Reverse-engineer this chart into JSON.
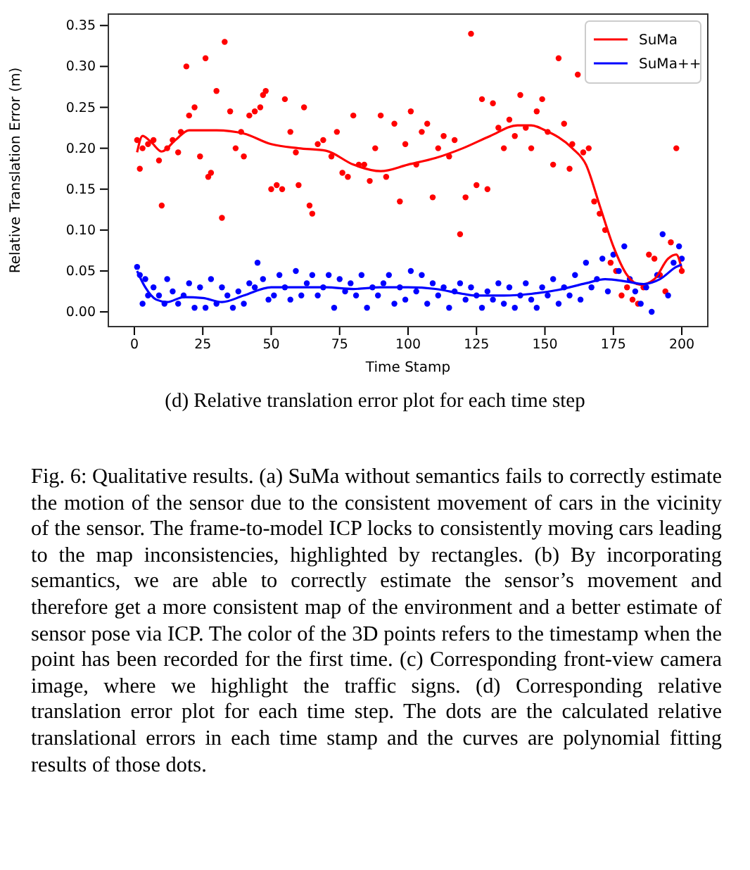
{
  "chart_data": {
    "type": "scatter",
    "title": "(d) Relative translation error plot for each time step",
    "xlabel": "Time Stamp",
    "ylabel": "Relative Translation Error (m)",
    "xlim": [
      -9.5,
      209.5
    ],
    "ylim": [
      -0.018,
      0.364
    ],
    "xticks": [
      0,
      25,
      50,
      75,
      100,
      125,
      150,
      175,
      200
    ],
    "yticks": [
      {
        "value": 0,
        "label": "0.00"
      },
      {
        "value": 0.05,
        "label": "0.05"
      },
      {
        "value": 0.1,
        "label": "0.10"
      },
      {
        "value": 0.15,
        "label": "0.15"
      },
      {
        "value": 0.2,
        "label": "0.20"
      },
      {
        "value": 0.25,
        "label": "0.25"
      },
      {
        "value": 0.3,
        "label": "0.30"
      },
      {
        "value": 0.35,
        "label": "0.35"
      }
    ],
    "grid": false,
    "legend": "top right",
    "series": [
      {
        "marker": "circle",
        "color": "#ff0000",
        "x": [
          1,
          2,
          3,
          5,
          7,
          9,
          10,
          12,
          14,
          16,
          17,
          19,
          20,
          22,
          24,
          26,
          27,
          28,
          30,
          32,
          33,
          35,
          37,
          39,
          40,
          42,
          44,
          46,
          47,
          48,
          50,
          52,
          54,
          55,
          57,
          59,
          60,
          62,
          64,
          65,
          67,
          69,
          72,
          74,
          76,
          78,
          80,
          82,
          84,
          86,
          88,
          90,
          92,
          95,
          97,
          99,
          101,
          103,
          105,
          107,
          109,
          111,
          113,
          115,
          117,
          119,
          121,
          123,
          125,
          127,
          129,
          131,
          133,
          135,
          137,
          139,
          141,
          143,
          145,
          147,
          149,
          151,
          153,
          155,
          157,
          159,
          160,
          162,
          164,
          166,
          168,
          170,
          172,
          174,
          176,
          178,
          180,
          182,
          184,
          186,
          188,
          190,
          192,
          194,
          196,
          198,
          200
        ],
        "values": [
          0.21,
          0.175,
          0.2,
          0.205,
          0.21,
          0.185,
          0.13,
          0.2,
          0.21,
          0.195,
          0.22,
          0.3,
          0.24,
          0.25,
          0.19,
          0.31,
          0.165,
          0.17,
          0.27,
          0.115,
          0.33,
          0.245,
          0.2,
          0.22,
          0.19,
          0.24,
          0.245,
          0.25,
          0.265,
          0.27,
          0.15,
          0.155,
          0.15,
          0.26,
          0.22,
          0.195,
          0.155,
          0.25,
          0.13,
          0.12,
          0.205,
          0.21,
          0.19,
          0.22,
          0.17,
          0.165,
          0.24,
          0.18,
          0.18,
          0.16,
          0.2,
          0.24,
          0.165,
          0.23,
          0.135,
          0.205,
          0.245,
          0.18,
          0.22,
          0.23,
          0.14,
          0.2,
          0.215,
          0.19,
          0.21,
          0.095,
          0.14,
          0.34,
          0.155,
          0.26,
          0.15,
          0.255,
          0.225,
          0.2,
          0.235,
          0.215,
          0.265,
          0.225,
          0.2,
          0.245,
          0.26,
          0.22,
          0.18,
          0.31,
          0.23,
          0.175,
          0.205,
          0.29,
          0.195,
          0.2,
          0.135,
          0.12,
          0.1,
          0.06,
          0.05,
          0.02,
          0.03,
          0.015,
          0.01,
          0.03,
          0.07,
          0.065,
          0.045,
          0.025,
          0.085,
          0.2,
          0.05
        ]
      },
      {
        "marker": "circle",
        "color": "#0000ff",
        "x": [
          1,
          2,
          3,
          4,
          5,
          7,
          9,
          11,
          12,
          14,
          16,
          18,
          20,
          22,
          24,
          26,
          28,
          30,
          32,
          34,
          36,
          38,
          40,
          42,
          44,
          45,
          47,
          49,
          51,
          53,
          55,
          57,
          59,
          61,
          63,
          65,
          67,
          69,
          71,
          73,
          75,
          77,
          79,
          81,
          83,
          85,
          87,
          89,
          91,
          93,
          95,
          97,
          99,
          101,
          103,
          105,
          107,
          109,
          111,
          113,
          115,
          117,
          119,
          121,
          123,
          125,
          127,
          129,
          131,
          133,
          135,
          137,
          139,
          141,
          143,
          145,
          147,
          149,
          151,
          153,
          155,
          157,
          159,
          161,
          163,
          165,
          167,
          169,
          171,
          173,
          175,
          177,
          179,
          181,
          183,
          185,
          187,
          189,
          191,
          193,
          195,
          197,
          199,
          200
        ],
        "values": [
          0.055,
          0.045,
          0.01,
          0.04,
          0.02,
          0.03,
          0.02,
          0.01,
          0.04,
          0.025,
          0.01,
          0.02,
          0.035,
          0.005,
          0.03,
          0.005,
          0.04,
          0.01,
          0.03,
          0.02,
          0.005,
          0.025,
          0.01,
          0.035,
          0.03,
          0.06,
          0.04,
          0.015,
          0.02,
          0.045,
          0.03,
          0.015,
          0.05,
          0.02,
          0.035,
          0.045,
          0.02,
          0.03,
          0.045,
          0.005,
          0.04,
          0.025,
          0.035,
          0.02,
          0.045,
          0.005,
          0.03,
          0.02,
          0.035,
          0.045,
          0.01,
          0.03,
          0.015,
          0.05,
          0.025,
          0.045,
          0.01,
          0.035,
          0.02,
          0.03,
          0.005,
          0.025,
          0.035,
          0.015,
          0.03,
          0.02,
          0.005,
          0.025,
          0.015,
          0.035,
          0.01,
          0.03,
          0.005,
          0.02,
          0.035,
          0.015,
          0.005,
          0.03,
          0.02,
          0.04,
          0.01,
          0.03,
          0.02,
          0.045,
          0.015,
          0.06,
          0.03,
          0.04,
          0.065,
          0.025,
          0.07,
          0.05,
          0.08,
          0.04,
          0.025,
          0.01,
          0.03,
          0.0,
          0.045,
          0.095,
          0.02,
          0.06,
          0.08,
          0.065
        ]
      },
      {
        "type": "line",
        "name": "SuMa",
        "color": "#ff0000",
        "x": [
          1,
          3,
          6,
          10,
          15,
          20,
          30,
          40,
          50,
          60,
          70,
          80,
          90,
          100,
          110,
          120,
          130,
          140,
          145,
          150,
          160,
          165,
          170,
          175,
          180,
          185,
          190,
          195,
          198,
          200
        ],
        "values": [
          0.195,
          0.215,
          0.208,
          0.196,
          0.21,
          0.222,
          0.222,
          0.218,
          0.205,
          0.2,
          0.197,
          0.18,
          0.172,
          0.18,
          0.188,
          0.2,
          0.215,
          0.228,
          0.228,
          0.222,
          0.2,
          0.18,
          0.13,
          0.08,
          0.045,
          0.033,
          0.04,
          0.065,
          0.07,
          0.052
        ]
      },
      {
        "type": "line",
        "name": "SuMa++",
        "color": "#0000ff",
        "x": [
          1,
          4,
          8,
          12,
          18,
          25,
          32,
          40,
          50,
          60,
          70,
          80,
          90,
          100,
          110,
          120,
          125,
          135,
          145,
          155,
          165,
          172,
          180,
          186,
          192,
          198,
          200
        ],
        "values": [
          0.05,
          0.03,
          0.015,
          0.012,
          0.018,
          0.017,
          0.012,
          0.02,
          0.03,
          0.03,
          0.03,
          0.028,
          0.03,
          0.03,
          0.028,
          0.022,
          0.02,
          0.02,
          0.022,
          0.027,
          0.035,
          0.04,
          0.037,
          0.034,
          0.04,
          0.055,
          0.058
        ]
      }
    ],
    "annotations": [
      "Fig. 6: Qualitative results. (a) SuMa without semantics fails to correctly estimate the motion of the sensor due to the consistent movement of cars in the vicinity of the sensor. The frame-to-model ICP locks to consistently moving cars leading to the map inconsistencies, highlighted by rectangles. (b) By incorporating semantics, we are able to correctly estimate the sensor’s movement and therefore get a more consistent map of the environment and a better estimate of sensor pose via ICP. The color of the 3D points refers to the timestamp when the point has been recorded for the first time. (c) Corresponding front-view camera image, where we highlight the traffic signs. (d) Corresponding relative translation error plot for each time step. The dots are the calculated relative translational errors in each time stamp and the curves are polynomial fitting results of those dots."
    ]
  }
}
